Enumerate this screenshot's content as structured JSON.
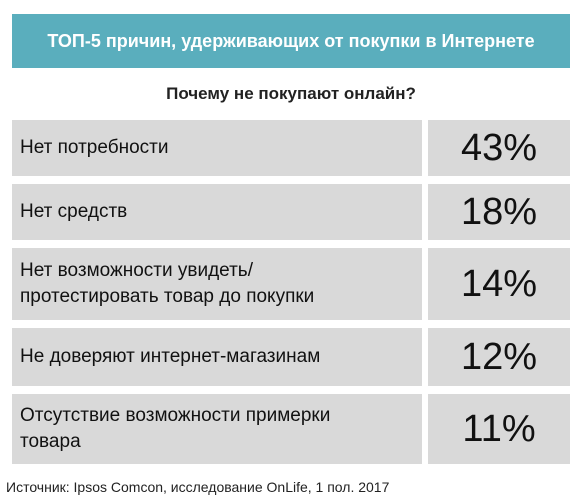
{
  "header": {
    "title": "ТОП-5 причин, удерживающих от покупки в Интернете"
  },
  "chart_data": {
    "type": "table",
    "question": "Почему не покупают онлайн?",
    "rows": [
      {
        "reason": "Нет потребности",
        "value": 43,
        "label": "43%"
      },
      {
        "reason": "Нет средств",
        "value": 18,
        "label": "18%"
      },
      {
        "reason": "Нет возможности увидеть/ протестировать товар до покупки",
        "value": 14,
        "label": "14%"
      },
      {
        "reason": "Не доверяют интернет-магазинам",
        "value": 12,
        "label": "12%"
      },
      {
        "reason": "Отсутствие возможности примерки товара",
        "value": 11,
        "label": "11%"
      }
    ]
  },
  "footer": {
    "source": "Источник: Ipsos Comcon, исследование OnLife, 1 пол. 2017"
  },
  "colors": {
    "header_bg": "#5aaebd",
    "cell_bg": "#d9d9d9"
  }
}
